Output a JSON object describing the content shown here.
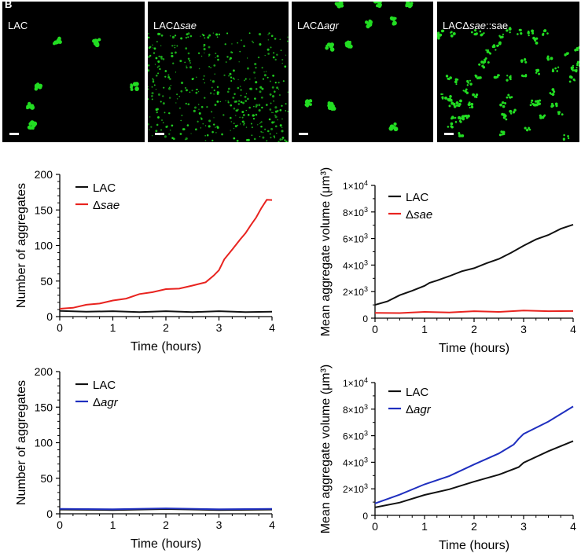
{
  "figure_letter": "B",
  "images": [
    {
      "label_main": "LAC",
      "label_ital": "",
      "label_tail": ""
    },
    {
      "label_main": "LACΔ",
      "label_ital": "sae",
      "label_tail": ""
    },
    {
      "label_main": "LACΔ",
      "label_ital": "agr",
      "label_tail": ""
    },
    {
      "label_main": "LACΔ",
      "label_ital": "sae",
      "label_tail": "::sae"
    }
  ],
  "colors": {
    "lac": "#111111",
    "sae": "#e8231f",
    "agr": "#1f2fbf",
    "cells": "#22dd22"
  },
  "chart_data": [
    {
      "type": "line",
      "xlabel": "Time (hours)",
      "ylabel": "Number of aggregates",
      "xlim": [
        0,
        4
      ],
      "ylim": [
        0,
        200
      ],
      "xticks": [
        "0",
        "1",
        "2",
        "3",
        "4"
      ],
      "yticks": [
        "0",
        "50",
        "100",
        "150",
        "200"
      ],
      "legend": [
        {
          "name": "LAC",
          "prefix": "",
          "ital": ""
        },
        {
          "name": "Δsae",
          "prefix": "Δ",
          "ital": "sae"
        }
      ],
      "series": [
        {
          "name": "LAC",
          "color_key": "lac",
          "x": [
            0,
            0.5,
            1,
            1.5,
            2,
            2.5,
            3,
            3.5,
            4
          ],
          "y": [
            8,
            7.5,
            7,
            7,
            7,
            7,
            7,
            7,
            7
          ]
        },
        {
          "name": "Δsae",
          "color_key": "sae",
          "x": [
            0,
            0.25,
            0.5,
            0.75,
            1,
            1.25,
            1.5,
            1.75,
            2,
            2.25,
            2.5,
            2.75,
            2.9,
            3.0,
            3.1,
            3.25,
            3.4,
            3.5,
            3.6,
            3.7,
            3.8,
            3.9,
            4.0
          ],
          "y": [
            11,
            13,
            16,
            19,
            22,
            26,
            31,
            35,
            38,
            40,
            43,
            49,
            57,
            66,
            80,
            95,
            108,
            118,
            128,
            140,
            152,
            165,
            164
          ]
        }
      ]
    },
    {
      "type": "line",
      "xlabel": "Time (hours)",
      "ylabel": "Mean aggregate volume (μm³)",
      "xlim": [
        0,
        4
      ],
      "ylim": [
        0,
        10000
      ],
      "xticks": [
        "0",
        "1",
        "2",
        "3",
        "4"
      ],
      "yticks": [
        {
          "m": "0",
          "e": ""
        },
        {
          "m": "2×10",
          "e": "3"
        },
        {
          "m": "4×10",
          "e": "3"
        },
        {
          "m": "6×10",
          "e": "3"
        },
        {
          "m": "8×10",
          "e": "3"
        },
        {
          "m": "1×10",
          "e": "4"
        }
      ],
      "legend": [
        {
          "name": "LAC",
          "prefix": "",
          "ital": ""
        },
        {
          "name": "Δsae",
          "prefix": "Δ",
          "ital": "sae"
        }
      ],
      "series": [
        {
          "name": "LAC",
          "color_key": "lac",
          "x": [
            0,
            0.25,
            0.5,
            0.75,
            1.0,
            1.1,
            1.25,
            1.5,
            1.75,
            2.0,
            2.25,
            2.5,
            2.75,
            3.0,
            3.25,
            3.5,
            3.75,
            4.0
          ],
          "y": [
            1000,
            1300,
            1700,
            2100,
            2400,
            2700,
            2800,
            3200,
            3500,
            3800,
            4100,
            4500,
            4900,
            5500,
            5900,
            6300,
            6700,
            7050
          ]
        },
        {
          "name": "Δsae",
          "color_key": "sae",
          "x": [
            0,
            0.5,
            1,
            1.5,
            2,
            2.5,
            3,
            3.5,
            4
          ],
          "y": [
            400,
            420,
            440,
            460,
            490,
            510,
            540,
            560,
            540
          ]
        }
      ]
    },
    {
      "type": "line",
      "xlabel": "Time (hours)",
      "ylabel": "Number of aggregates",
      "xlim": [
        0,
        4
      ],
      "ylim": [
        0,
        200
      ],
      "xticks": [
        "0",
        "1",
        "2",
        "3",
        "4"
      ],
      "yticks": [
        "0",
        "50",
        "100",
        "150",
        "200"
      ],
      "legend": [
        {
          "name": "LAC",
          "prefix": "",
          "ital": ""
        },
        {
          "name": "Δagr",
          "prefix": "Δ",
          "ital": "agr"
        }
      ],
      "series": [
        {
          "name": "LAC",
          "color_key": "lac",
          "x": [
            0,
            1,
            2,
            3,
            4
          ],
          "y": [
            6,
            6,
            6,
            6,
            6
          ]
        },
        {
          "name": "Δagr",
          "color_key": "agr",
          "x": [
            0,
            1,
            2,
            3,
            4
          ],
          "y": [
            7,
            7,
            7,
            7,
            7
          ]
        }
      ]
    },
    {
      "type": "line",
      "xlabel": "Time (hours)",
      "ylabel": "Mean aggregate volume (μm³)",
      "xlim": [
        0,
        4
      ],
      "ylim": [
        0,
        10000
      ],
      "xticks": [
        "0",
        "1",
        "2",
        "3",
        "4"
      ],
      "yticks": [
        {
          "m": "0",
          "e": ""
        },
        {
          "m": "2×10",
          "e": "3"
        },
        {
          "m": "4×10",
          "e": "3"
        },
        {
          "m": "6×10",
          "e": "3"
        },
        {
          "m": "8×10",
          "e": "3"
        },
        {
          "m": "1×10",
          "e": "4"
        }
      ],
      "legend": [
        {
          "name": "LAC",
          "prefix": "",
          "ital": ""
        },
        {
          "name": "Δagr",
          "prefix": "Δ",
          "ital": "agr"
        }
      ],
      "series": [
        {
          "name": "LAC",
          "color_key": "lac",
          "x": [
            0,
            0.5,
            1,
            1.5,
            2,
            2.5,
            2.9,
            3.0,
            3.5,
            4.0
          ],
          "y": [
            600,
            1000,
            1500,
            2000,
            2500,
            3100,
            3600,
            4000,
            4800,
            5600
          ]
        },
        {
          "name": "Δagr",
          "color_key": "agr",
          "x": [
            0,
            0.5,
            1,
            1.5,
            2,
            2.5,
            2.8,
            2.9,
            3.0,
            3.5,
            4.0
          ],
          "y": [
            900,
            1600,
            2300,
            3000,
            3800,
            4700,
            5300,
            5800,
            6100,
            7100,
            8200
          ]
        }
      ]
    }
  ]
}
